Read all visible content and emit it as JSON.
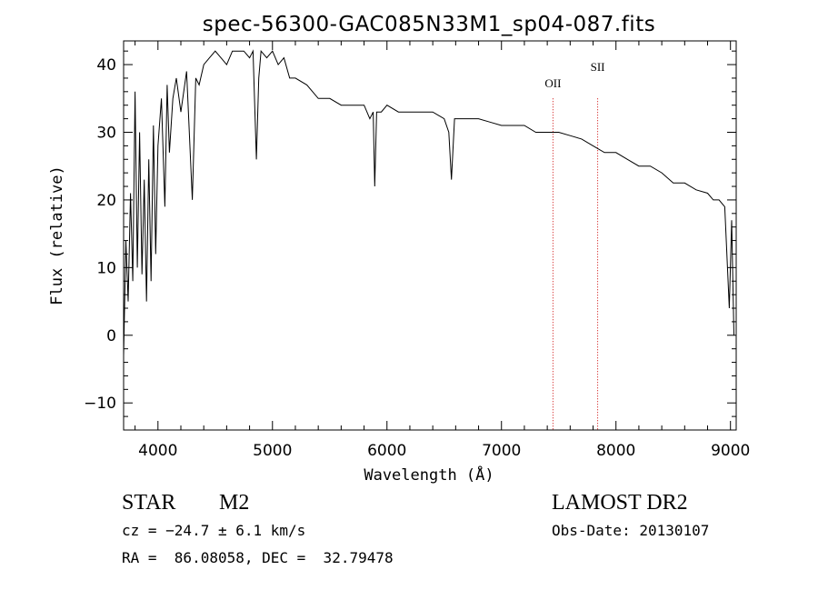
{
  "chart_data": {
    "type": "line",
    "title": "spec-56300-GAC085N33M1_sp04-087.fits",
    "xlabel": "Wavelength (Å)",
    "ylabel": "Flux (relative)",
    "xlim": [
      3700,
      9050
    ],
    "ylim": [
      -14,
      43.5
    ],
    "x_ticks": [
      "4000",
      "5000",
      "6000",
      "7000",
      "8000",
      "9000"
    ],
    "y_ticks": [
      "−10",
      "0",
      "10",
      "20",
      "30",
      "40"
    ],
    "x_tick_values": [
      4000,
      5000,
      6000,
      7000,
      8000,
      9000
    ],
    "y_tick_values": [
      -10,
      0,
      10,
      20,
      30,
      40
    ],
    "series": [
      {
        "x": [
          3700,
          3720,
          3740,
          3760,
          3780,
          3800,
          3820,
          3840,
          3860,
          3880,
          3900,
          3920,
          3940,
          3960,
          3980,
          4000,
          4030,
          4060,
          4080,
          4100,
          4130,
          4160,
          4200,
          4250,
          4300,
          4330,
          4360,
          4400,
          4450,
          4500,
          4550,
          4600,
          4650,
          4700,
          4750,
          4800,
          4830,
          4860,
          4880,
          4900,
          4950,
          5000,
          5050,
          5100,
          5150,
          5200,
          5300,
          5400,
          5500,
          5600,
          5700,
          5800,
          5850,
          5880,
          5893,
          5910,
          5950,
          6000,
          6100,
          6200,
          6300,
          6400,
          6500,
          6540,
          6563,
          6590,
          6650,
          6700,
          6800,
          6900,
          7000,
          7100,
          7200,
          7300,
          7400,
          7500,
          7600,
          7700,
          7800,
          7900,
          8000,
          8100,
          8200,
          8300,
          8400,
          8500,
          8600,
          8700,
          8800,
          8850,
          8900,
          8950,
          8990,
          9010,
          9030
        ],
        "y": [
          -3,
          14,
          5,
          21,
          8,
          36,
          10,
          30,
          9,
          23,
          5,
          26,
          8,
          31,
          12,
          28,
          35,
          19,
          37,
          27,
          35,
          38,
          33,
          39,
          20,
          38,
          37,
          40,
          41,
          42,
          41,
          40,
          42,
          42,
          42,
          41,
          42,
          26,
          38,
          42,
          41,
          42,
          40,
          41,
          38,
          38,
          37,
          35,
          35,
          34,
          34,
          34,
          32,
          33,
          22,
          33,
          33,
          34,
          33,
          33,
          33,
          33,
          32,
          30,
          23,
          32,
          32,
          32,
          32,
          31.5,
          31,
          31,
          31,
          30,
          30,
          30,
          29.5,
          29,
          28,
          27,
          27,
          26,
          25,
          25,
          24,
          22.5,
          22.5,
          21.5,
          21,
          20,
          20,
          19,
          4,
          17,
          0
        ],
        "color": "#000000"
      }
    ],
    "line_markers": [
      {
        "label": "OII",
        "x": 7450,
        "color": "#cc0000"
      },
      {
        "label": "SII",
        "x": 7840,
        "color": "#cc0000"
      }
    ],
    "grid": false
  },
  "info": {
    "class": "STAR",
    "subclass": "M2",
    "survey": "LAMOST DR2",
    "cz": "cz = −24.7 ± 6.1 km/s",
    "obs_date": "Obs-Date: 20130107",
    "coords": "RA =  86.08058, DEC =  32.79478"
  }
}
